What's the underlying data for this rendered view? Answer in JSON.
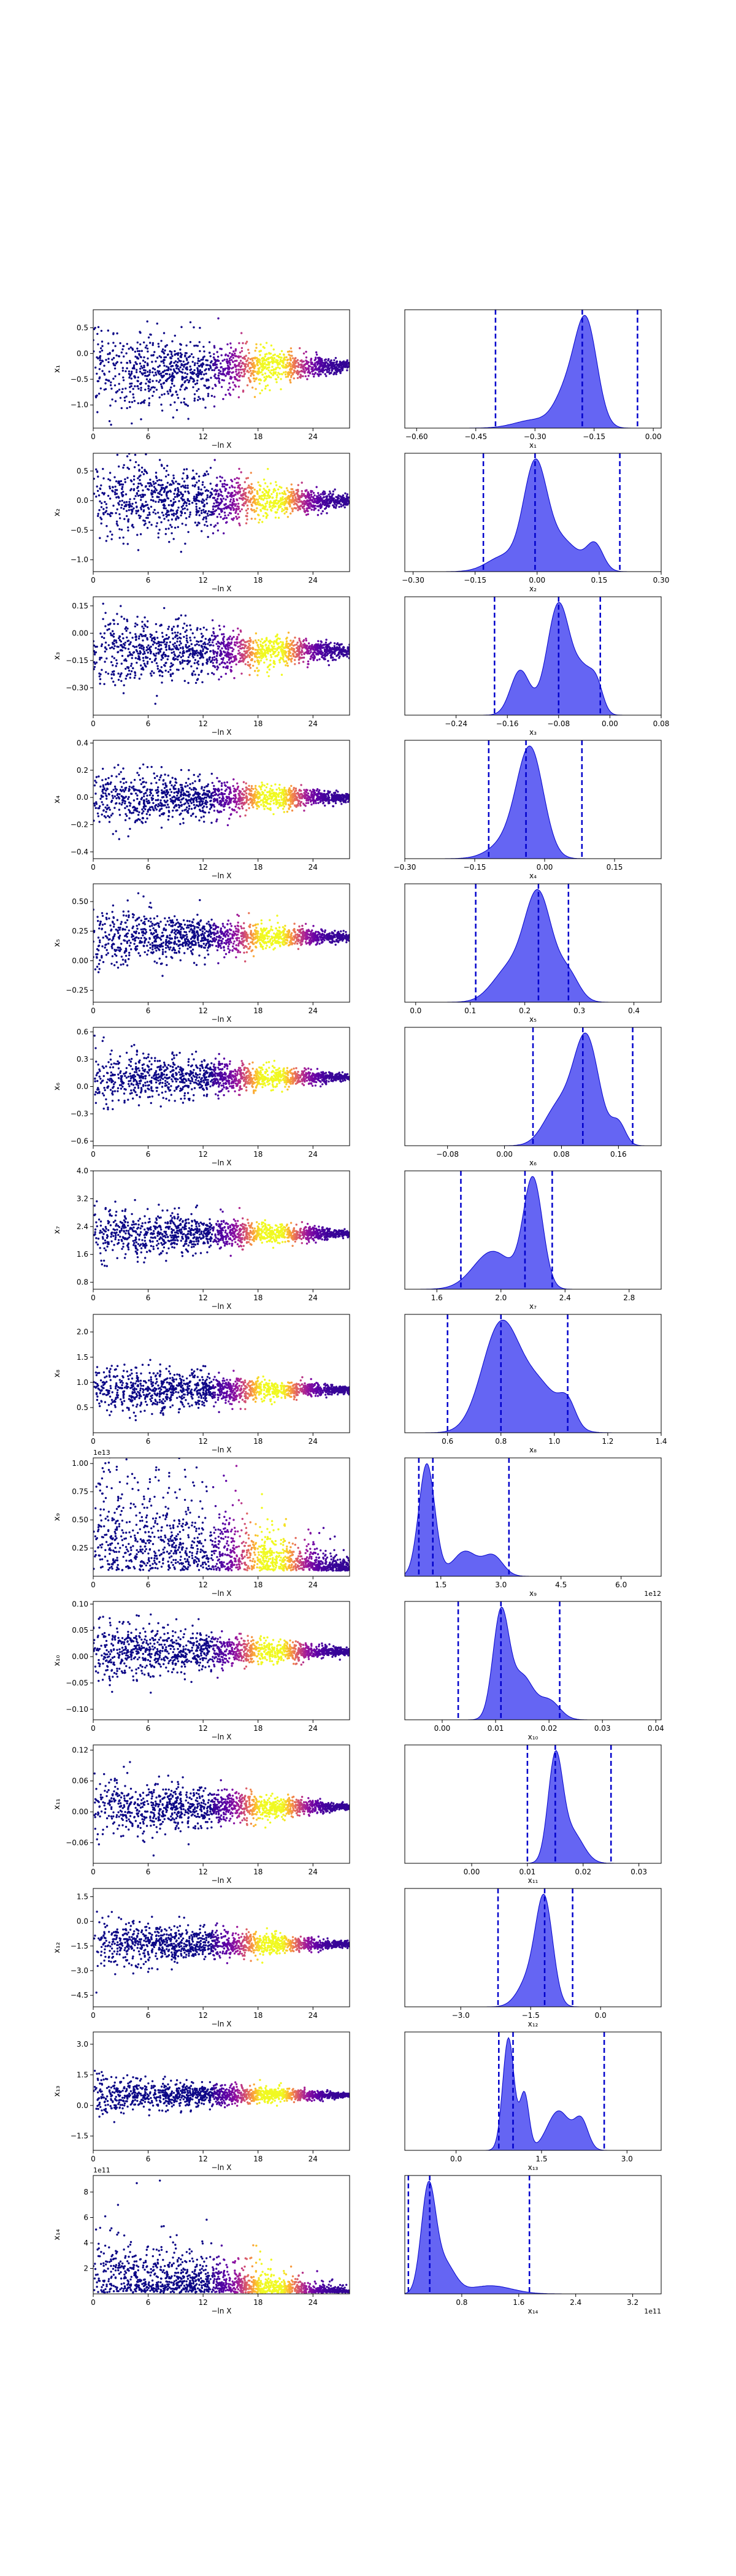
{
  "figure": {
    "scatter_x_label": "−ln X",
    "scatter_x_ticks": [
      "0",
      "6",
      "12",
      "18",
      "24"
    ],
    "scatter_x_tick_values": [
      0,
      6,
      12,
      18,
      24
    ],
    "scatter_xlim": [
      0,
      28
    ],
    "scatter_colormap": [
      "#0d0887",
      "#5c01a6",
      "#9c179e",
      "#cc4778",
      "#ed7953",
      "#fdb42f",
      "#f0f921"
    ],
    "kde_fill_color": "#3a3af0",
    "kde_line_color": "#0000cc",
    "ci_line_color": "#0000cc"
  },
  "chart_data": [
    {
      "type": "scatter",
      "param": "x_1",
      "ylabel": "x₁",
      "y_ticks": [
        "0.5",
        "0.0",
        "−0.5",
        "−1.0"
      ],
      "y_tick_values": [
        0.5,
        0.0,
        -0.5,
        -1.0
      ],
      "ylim": [
        -1.45,
        0.85
      ],
      "y_center": -0.22,
      "y_spread_start": 0.85,
      "y_spread_end": 0.08,
      "y_skew": -0.6
    },
    {
      "type": "area",
      "param": "x_1",
      "xlabel": "x₁",
      "x_ticks": [
        "−0.60",
        "−0.45",
        "−0.30",
        "−0.15",
        "0.00"
      ],
      "x_tick_values": [
        -0.6,
        -0.45,
        -0.3,
        -0.15,
        0.0
      ],
      "xlim": [
        -0.63,
        0.02
      ],
      "ci_lines": [
        -0.4,
        -0.18,
        -0.04
      ],
      "peaks": [
        [
          -0.17,
          0.028,
          1.0
        ],
        [
          -0.22,
          0.03,
          0.32
        ],
        [
          -0.3,
          0.05,
          0.08
        ]
      ]
    },
    {
      "type": "scatter",
      "param": "x_2",
      "ylabel": "x₂",
      "y_ticks": [
        "0.5",
        "0.0",
        "−0.5",
        "−1.0"
      ],
      "y_tick_values": [
        0.5,
        0.0,
        -0.5,
        -1.0
      ],
      "ylim": [
        -1.2,
        0.8
      ],
      "y_center": 0.0,
      "y_spread_start": 0.75,
      "y_spread_end": 0.07,
      "y_skew": 0.0
    },
    {
      "type": "area",
      "param": "x_2",
      "xlabel": "x₂",
      "x_ticks": [
        "−0.30",
        "−0.15",
        "0.00",
        "0.15",
        "0.30"
      ],
      "x_tick_values": [
        -0.3,
        -0.15,
        0.0,
        0.15,
        0.3
      ],
      "xlim": [
        -0.32,
        0.3
      ],
      "ci_lines": [
        -0.13,
        -0.005,
        0.2
      ],
      "peaks": [
        [
          -0.005,
          0.028,
          1.0
        ],
        [
          0.06,
          0.04,
          0.3
        ],
        [
          0.14,
          0.02,
          0.25
        ],
        [
          -0.08,
          0.04,
          0.15
        ]
      ]
    },
    {
      "type": "scatter",
      "param": "x_3",
      "ylabel": "x₃",
      "y_ticks": [
        "0.15",
        "0.00",
        "−0.15",
        "−0.30"
      ],
      "y_tick_values": [
        0.15,
        0.0,
        -0.15,
        -0.3
      ],
      "ylim": [
        -0.45,
        0.2
      ],
      "y_center": -0.1,
      "y_spread_start": 0.2,
      "y_spread_end": 0.03,
      "y_skew": 0.0
    },
    {
      "type": "area",
      "param": "x_3",
      "xlabel": "x₃",
      "x_ticks": [
        "−0.24",
        "−0.16",
        "−0.08",
        "0.00",
        "0.08"
      ],
      "x_tick_values": [
        -0.24,
        -0.16,
        -0.08,
        0.0,
        0.08
      ],
      "xlim": [
        -0.32,
        0.08
      ],
      "ci_lines": [
        -0.18,
        -0.08,
        -0.015
      ],
      "peaks": [
        [
          -0.08,
          0.018,
          1.0
        ],
        [
          -0.14,
          0.015,
          0.4
        ],
        [
          -0.04,
          0.015,
          0.35
        ],
        [
          -0.02,
          0.01,
          0.2
        ]
      ]
    },
    {
      "type": "scatter",
      "param": "x_4",
      "ylabel": "x₄",
      "y_ticks": [
        "0.4",
        "0.2",
        "0.0",
        "−0.2",
        "−0.4"
      ],
      "y_tick_values": [
        0.4,
        0.2,
        0.0,
        -0.2,
        -0.4
      ],
      "ylim": [
        -0.45,
        0.42
      ],
      "y_center": 0.0,
      "y_spread_start": 0.2,
      "y_spread_end": 0.03,
      "y_skew": 0.0
    },
    {
      "type": "area",
      "param": "x_4",
      "xlabel": "x₄",
      "x_ticks": [
        "−0.30",
        "−0.15",
        "0.00",
        "0.15"
      ],
      "x_tick_values": [
        -0.3,
        -0.15,
        0.0,
        0.15
      ],
      "xlim": [
        -0.3,
        0.25
      ],
      "ci_lines": [
        -0.12,
        -0.04,
        0.08
      ],
      "peaks": [
        [
          -0.03,
          0.028,
          1.0
        ],
        [
          -0.07,
          0.04,
          0.2
        ]
      ]
    },
    {
      "type": "scatter",
      "param": "x_5",
      "ylabel": "x₅",
      "y_ticks": [
        "0.50",
        "0.25",
        "0.00",
        "−0.25"
      ],
      "y_tick_values": [
        0.5,
        0.25,
        0.0,
        -0.25
      ],
      "ylim": [
        -0.35,
        0.65
      ],
      "y_center": 0.2,
      "y_spread_start": 0.25,
      "y_spread_end": 0.03,
      "y_skew": 0.0
    },
    {
      "type": "area",
      "param": "x_5",
      "xlabel": "x₅",
      "x_ticks": [
        "0.0",
        "0.1",
        "0.2",
        "0.3",
        "0.4"
      ],
      "x_tick_values": [
        0.0,
        0.1,
        0.2,
        0.3,
        0.4
      ],
      "xlim": [
        -0.02,
        0.45
      ],
      "ci_lines": [
        0.11,
        0.225,
        0.28
      ],
      "peaks": [
        [
          0.225,
          0.025,
          1.0
        ],
        [
          0.17,
          0.03,
          0.3
        ],
        [
          0.28,
          0.02,
          0.25
        ]
      ]
    },
    {
      "type": "scatter",
      "param": "x_6",
      "ylabel": "x₆",
      "y_ticks": [
        "0.6",
        "0.3",
        "0.0",
        "−0.3",
        "−0.6"
      ],
      "y_tick_values": [
        0.6,
        0.3,
        0.0,
        -0.3,
        -0.6
      ],
      "ylim": [
        -0.65,
        0.65
      ],
      "y_center": 0.1,
      "y_spread_start": 0.3,
      "y_spread_end": 0.03,
      "y_skew": 0.0
    },
    {
      "type": "area",
      "param": "x_6",
      "xlabel": "x₆",
      "x_ticks": [
        "−0.08",
        "0.00",
        "0.08",
        "0.16"
      ],
      "x_tick_values": [
        -0.08,
        0.0,
        0.08,
        0.16
      ],
      "xlim": [
        -0.14,
        0.22
      ],
      "ci_lines": [
        0.04,
        0.11,
        0.18
      ],
      "peaks": [
        [
          0.115,
          0.018,
          1.0
        ],
        [
          0.075,
          0.02,
          0.35
        ],
        [
          0.16,
          0.01,
          0.2
        ]
      ]
    },
    {
      "type": "scatter",
      "param": "x_7",
      "ylabel": "x₇",
      "y_ticks": [
        "4.0",
        "3.2",
        "2.4",
        "1.6",
        "0.8"
      ],
      "y_tick_values": [
        4.0,
        3.2,
        2.4,
        1.6,
        0.8
      ],
      "ylim": [
        0.6,
        4.0
      ],
      "y_center": 2.2,
      "y_spread_start": 0.75,
      "y_spread_end": 0.08,
      "y_skew": 0.0
    },
    {
      "type": "area",
      "param": "x_7",
      "xlabel": "x₇",
      "x_ticks": [
        "1.6",
        "2.0",
        "2.4",
        "2.8"
      ],
      "x_tick_values": [
        1.6,
        2.0,
        2.4,
        2.8
      ],
      "xlim": [
        1.4,
        3.0
      ],
      "ci_lines": [
        1.75,
        2.15,
        2.32
      ],
      "peaks": [
        [
          2.2,
          0.06,
          1.0
        ],
        [
          1.95,
          0.12,
          0.35
        ]
      ]
    },
    {
      "type": "scatter",
      "param": "x_8",
      "ylabel": "x₈",
      "y_ticks": [
        "2.0",
        "1.5",
        "1.0",
        "0.5"
      ],
      "y_tick_values": [
        2.0,
        1.5,
        1.0,
        0.5
      ],
      "ylim": [
        0.0,
        2.35
      ],
      "y_center": 0.85,
      "y_spread_start": 0.5,
      "y_spread_end": 0.06,
      "y_skew": 0.0
    },
    {
      "type": "area",
      "param": "x_8",
      "xlabel": "x₈",
      "x_ticks": [
        "0.6",
        "0.8",
        "1.0",
        "1.2",
        "1.4"
      ],
      "x_tick_values": [
        0.6,
        0.8,
        1.0,
        1.2,
        1.4
      ],
      "xlim": [
        0.44,
        1.4
      ],
      "ci_lines": [
        0.6,
        0.8,
        1.05
      ],
      "peaks": [
        [
          0.8,
          0.07,
          1.0
        ],
        [
          0.95,
          0.07,
          0.4
        ],
        [
          1.05,
          0.03,
          0.2
        ]
      ]
    },
    {
      "type": "scatter",
      "param": "x_9",
      "ylabel": "x₉",
      "offset": "1e13",
      "y_ticks": [
        "1.00",
        "0.75",
        "0.50",
        "0.25"
      ],
      "y_tick_values": [
        1.0,
        0.75,
        0.5,
        0.25
      ],
      "ylim": [
        0.0,
        1.05
      ],
      "y_center": 0.05,
      "y_spread_start": 0.45,
      "y_spread_end": 0.04,
      "y_skew": 1.0
    },
    {
      "type": "area",
      "param": "x_9",
      "xlabel": "x₉",
      "offset": "1e12",
      "x_ticks": [
        "1.5",
        "3.0",
        "4.5",
        "6.0"
      ],
      "x_tick_values": [
        1.5,
        3.0,
        4.5,
        6.0
      ],
      "xlim": [
        0.6,
        7.0
      ],
      "ci_lines": [
        0.95,
        1.3,
        3.2
      ],
      "peaks": [
        [
          1.15,
          0.2,
          1.0
        ],
        [
          2.1,
          0.3,
          0.22
        ],
        [
          2.8,
          0.25,
          0.18
        ]
      ]
    },
    {
      "type": "scatter",
      "param": "x_10",
      "ylabel": "x₁₀",
      "y_ticks": [
        "0.10",
        "0.05",
        "0.00",
        "−0.05",
        "−0.10"
      ],
      "y_tick_values": [
        0.1,
        0.05,
        0.0,
        -0.05,
        -0.1
      ],
      "ylim": [
        -0.12,
        0.105
      ],
      "y_center": 0.01,
      "y_spread_start": 0.06,
      "y_spread_end": 0.006,
      "y_skew": 0.0
    },
    {
      "type": "area",
      "param": "x_10",
      "xlabel": "x₁₀",
      "x_ticks": [
        "0.00",
        "0.01",
        "0.02",
        "0.03",
        "0.04"
      ],
      "x_tick_values": [
        0.0,
        0.01,
        0.02,
        0.03,
        0.04
      ],
      "xlim": [
        -0.007,
        0.041
      ],
      "ci_lines": [
        0.003,
        0.011,
        0.022
      ],
      "peaks": [
        [
          0.011,
          0.0015,
          1.0
        ],
        [
          0.015,
          0.002,
          0.4
        ],
        [
          0.02,
          0.002,
          0.18
        ]
      ]
    },
    {
      "type": "scatter",
      "param": "x_11",
      "ylabel": "x₁₁",
      "y_ticks": [
        "0.12",
        "0.06",
        "0.00",
        "−0.06"
      ],
      "y_tick_values": [
        0.12,
        0.06,
        0.0,
        -0.06
      ],
      "ylim": [
        -0.1,
        0.13
      ],
      "y_center": 0.01,
      "y_spread_start": 0.06,
      "y_spread_end": 0.005,
      "y_skew": 0.0
    },
    {
      "type": "area",
      "param": "x_11",
      "xlabel": "x₁₁",
      "x_ticks": [
        "0.00",
        "0.01",
        "0.02",
        "0.03"
      ],
      "x_tick_values": [
        0.0,
        0.01,
        0.02,
        0.03
      ],
      "xlim": [
        -0.012,
        0.034
      ],
      "ci_lines": [
        0.01,
        0.015,
        0.025
      ],
      "peaks": [
        [
          0.015,
          0.0013,
          1.0
        ],
        [
          0.018,
          0.002,
          0.3
        ]
      ]
    },
    {
      "type": "scatter",
      "param": "x_12",
      "ylabel": "x₁₂",
      "y_ticks": [
        "1.5",
        "0.0",
        "−1.5",
        "−3.0",
        "−4.5"
      ],
      "y_tick_values": [
        1.5,
        0.0,
        -1.5,
        -3.0,
        -4.5
      ],
      "ylim": [
        -5.2,
        2.0
      ],
      "y_center": -1.4,
      "y_spread_start": 1.5,
      "y_spread_end": 0.15,
      "y_skew": 0.0
    },
    {
      "type": "area",
      "param": "x_12",
      "xlabel": "x₁₂",
      "x_ticks": [
        "−3.0",
        "−1.5",
        "0.0"
      ],
      "x_tick_values": [
        -3.0,
        -1.5,
        0.0
      ],
      "xlim": [
        -4.2,
        1.3
      ],
      "ci_lines": [
        -2.2,
        -1.2,
        -0.6
      ],
      "peaks": [
        [
          -1.2,
          0.18,
          1.0
        ],
        [
          -1.5,
          0.25,
          0.3
        ]
      ]
    },
    {
      "type": "scatter",
      "param": "x_13",
      "ylabel": "x₁₃",
      "y_ticks": [
        "3.0",
        "1.5",
        "0.0",
        "−1.5"
      ],
      "y_tick_values": [
        3.0,
        1.5,
        0.0,
        -1.5
      ],
      "ylim": [
        -2.2,
        3.6
      ],
      "y_center": 0.5,
      "y_spread_start": 0.9,
      "y_spread_end": 0.1,
      "y_skew": 0.0
    },
    {
      "type": "area",
      "param": "x_13",
      "xlabel": "x₁₃",
      "x_ticks": [
        "0.0",
        "1.5",
        "3.0"
      ],
      "x_tick_values": [
        0.0,
        1.5,
        3.0
      ],
      "xlim": [
        -0.9,
        3.6
      ],
      "ci_lines": [
        0.75,
        1.0,
        2.6
      ],
      "peaks": [
        [
          0.92,
          0.1,
          1.0
        ],
        [
          1.2,
          0.08,
          0.5
        ],
        [
          1.8,
          0.2,
          0.35
        ],
        [
          2.2,
          0.12,
          0.25
        ]
      ]
    },
    {
      "type": "scatter",
      "param": "x_14",
      "ylabel": "x₁₄",
      "offset": "1e11",
      "y_ticks": [
        "8",
        "6",
        "4",
        "2"
      ],
      "y_tick_values": [
        8,
        6,
        4,
        2
      ],
      "ylim": [
        0.0,
        9.3
      ],
      "y_center": 0.1,
      "y_spread_start": 2.0,
      "y_spread_end": 0.1,
      "y_skew": 1.0
    },
    {
      "type": "area",
      "param": "x_14",
      "xlabel": "x₁₄",
      "offset": "1e11",
      "x_ticks": [
        "0.8",
        "1.6",
        "2.4",
        "3.2"
      ],
      "x_tick_values": [
        0.8,
        1.6,
        2.4,
        3.2
      ],
      "xlim": [
        0.0,
        3.6
      ],
      "ci_lines": [
        0.05,
        0.35,
        1.75
      ],
      "peaks": [
        [
          0.33,
          0.1,
          1.0
        ],
        [
          0.55,
          0.15,
          0.3
        ],
        [
          1.2,
          0.3,
          0.08
        ]
      ]
    }
  ]
}
